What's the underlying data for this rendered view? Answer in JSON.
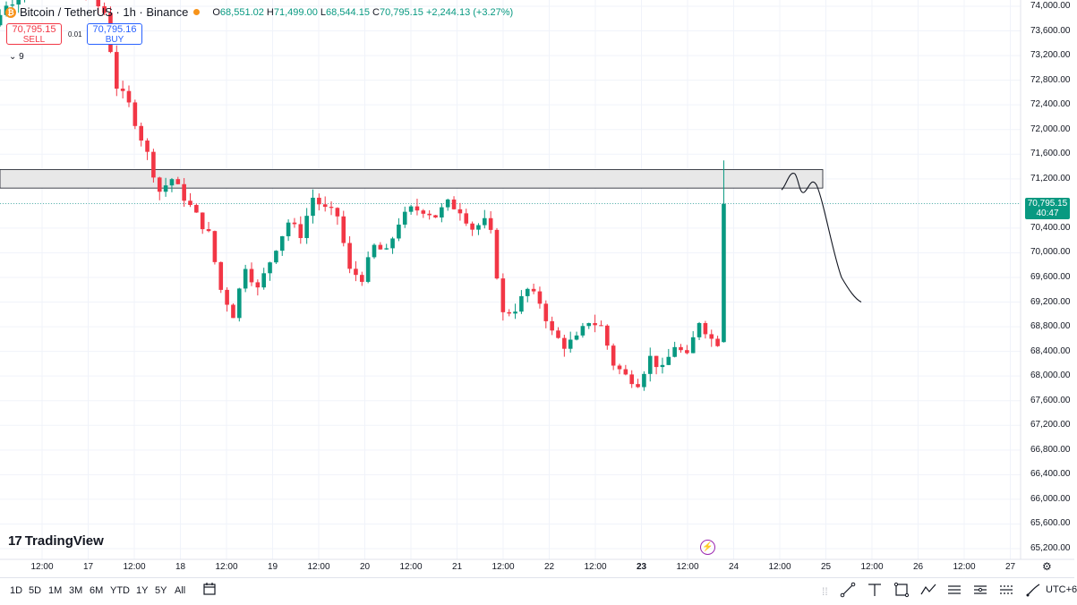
{
  "header": {
    "coin_glyph": "₿",
    "symbol": "Bitcoin / TetherUS · 1h · Binance",
    "o_label": "O",
    "o_value": "68,551.02",
    "h_label": "H",
    "h_value": "71,499.00",
    "l_label": "L",
    "l_value": "68,544.15",
    "c_label": "C",
    "c_value": "70,795.15",
    "change": "+2,244.13 (+3.27%)"
  },
  "trade": {
    "sell_price": "70,795.15",
    "sell_label": "SELL",
    "buy_price": "70,795.16",
    "buy_label": "BUY",
    "spread": "0.01"
  },
  "indicator": {
    "arrow": "⌄",
    "count": "9"
  },
  "brand": {
    "mark": "17",
    "name": "TradingView"
  },
  "current_price": {
    "value": "70,795.15",
    "countdown": "40:47"
  },
  "y_axis": [
    "74,000.00",
    "73,600.00",
    "73,200.00",
    "72,800.00",
    "72,400.00",
    "72,000.00",
    "71,600.00",
    "71,200.00",
    "70,800.00",
    "70,400.00",
    "70,000.00",
    "69,600.00",
    "69,200.00",
    "68,800.00",
    "68,400.00",
    "68,000.00",
    "67,600.00",
    "67,200.00",
    "66,800.00",
    "66,400.00",
    "66,000.00",
    "65,600.00",
    "65,200.00"
  ],
  "x_axis": [
    {
      "label": "12:00",
      "bold": false
    },
    {
      "label": "17",
      "bold": false
    },
    {
      "label": "12:00",
      "bold": false
    },
    {
      "label": "18",
      "bold": false
    },
    {
      "label": "12:00",
      "bold": false
    },
    {
      "label": "19",
      "bold": false
    },
    {
      "label": "12:00",
      "bold": false
    },
    {
      "label": "20",
      "bold": false
    },
    {
      "label": "12:00",
      "bold": false
    },
    {
      "label": "21",
      "bold": false
    },
    {
      "label": "12:00",
      "bold": false
    },
    {
      "label": "22",
      "bold": false
    },
    {
      "label": "12:00",
      "bold": false
    },
    {
      "label": "23",
      "bold": true
    },
    {
      "label": "12:00",
      "bold": false
    },
    {
      "label": "24",
      "bold": false
    },
    {
      "label": "12:00",
      "bold": false
    },
    {
      "label": "25",
      "bold": false
    },
    {
      "label": "12:00",
      "bold": false
    },
    {
      "label": "26",
      "bold": false
    },
    {
      "label": "12:00",
      "bold": false
    },
    {
      "label": "27",
      "bold": false
    }
  ],
  "timeframes": [
    "1D",
    "5D",
    "1M",
    "3M",
    "6M",
    "YTD",
    "1Y",
    "5Y",
    "All"
  ],
  "timezone": "UTC+6",
  "icons": {
    "settings": "gear-icon",
    "goto_date": "calendar-icon",
    "alert": "lightning-icon",
    "tools": [
      "trend-line-icon",
      "horizontal-ray-icon",
      "rectangle-icon",
      "path-icon",
      "long-position-icon",
      "short-position-icon",
      "projection-icon",
      "brush-icon"
    ]
  },
  "colors": {
    "up": "#089981",
    "down": "#f23645",
    "sell": "#f23645",
    "buy": "#2962ff",
    "zone_fill": "#e8e8e8",
    "alert": "#9c27b0"
  },
  "chart_data": {
    "type": "candlestick",
    "pair": "BTC/USDT",
    "interval": "1h",
    "ylim": [
      65200,
      74000
    ],
    "grid": true,
    "resistance_zone": [
      71050,
      71350
    ],
    "last_price": 70795.15,
    "last_candle": {
      "open": 68551.02,
      "high": 71499.0,
      "low": 68544.15,
      "close": 70795.15
    },
    "waypoints": [
      [
        -6,
        72500
      ],
      [
        -3,
        73200
      ],
      [
        0,
        73900
      ],
      [
        4,
        74300
      ],
      [
        8,
        74500
      ],
      [
        12,
        74400
      ],
      [
        17,
        73900
      ],
      [
        19,
        72700
      ],
      [
        21,
        72400
      ],
      [
        24,
        71600
      ],
      [
        26,
        71000
      ],
      [
        28,
        71200
      ],
      [
        30,
        70900
      ],
      [
        34,
        70300
      ],
      [
        36,
        69400
      ],
      [
        38,
        69000
      ],
      [
        40,
        69800
      ],
      [
        42,
        69400
      ],
      [
        45,
        70100
      ],
      [
        47,
        70500
      ],
      [
        49,
        70300
      ],
      [
        51,
        70900
      ],
      [
        53,
        70700
      ],
      [
        55,
        70600
      ],
      [
        57,
        69700
      ],
      [
        59,
        69600
      ],
      [
        61,
        70100
      ],
      [
        63,
        70000
      ],
      [
        65,
        70500
      ],
      [
        67,
        70700
      ],
      [
        69,
        70700
      ],
      [
        71,
        70600
      ],
      [
        73,
        70800
      ],
      [
        75,
        70700
      ],
      [
        77,
        70400
      ],
      [
        79,
        70500
      ],
      [
        80,
        70300
      ],
      [
        82,
        69000
      ],
      [
        84,
        69100
      ],
      [
        86,
        69400
      ],
      [
        88,
        69200
      ],
      [
        90,
        68700
      ],
      [
        92,
        68500
      ],
      [
        94,
        68600
      ],
      [
        96,
        68900
      ],
      [
        98,
        68800
      ],
      [
        100,
        68200
      ],
      [
        102,
        68000
      ],
      [
        104,
        67900
      ],
      [
        106,
        68300
      ],
      [
        108,
        68100
      ],
      [
        110,
        68500
      ],
      [
        112,
        68300
      ],
      [
        114,
        68900
      ],
      [
        116,
        68600
      ],
      [
        117,
        68551.02
      ]
    ]
  }
}
